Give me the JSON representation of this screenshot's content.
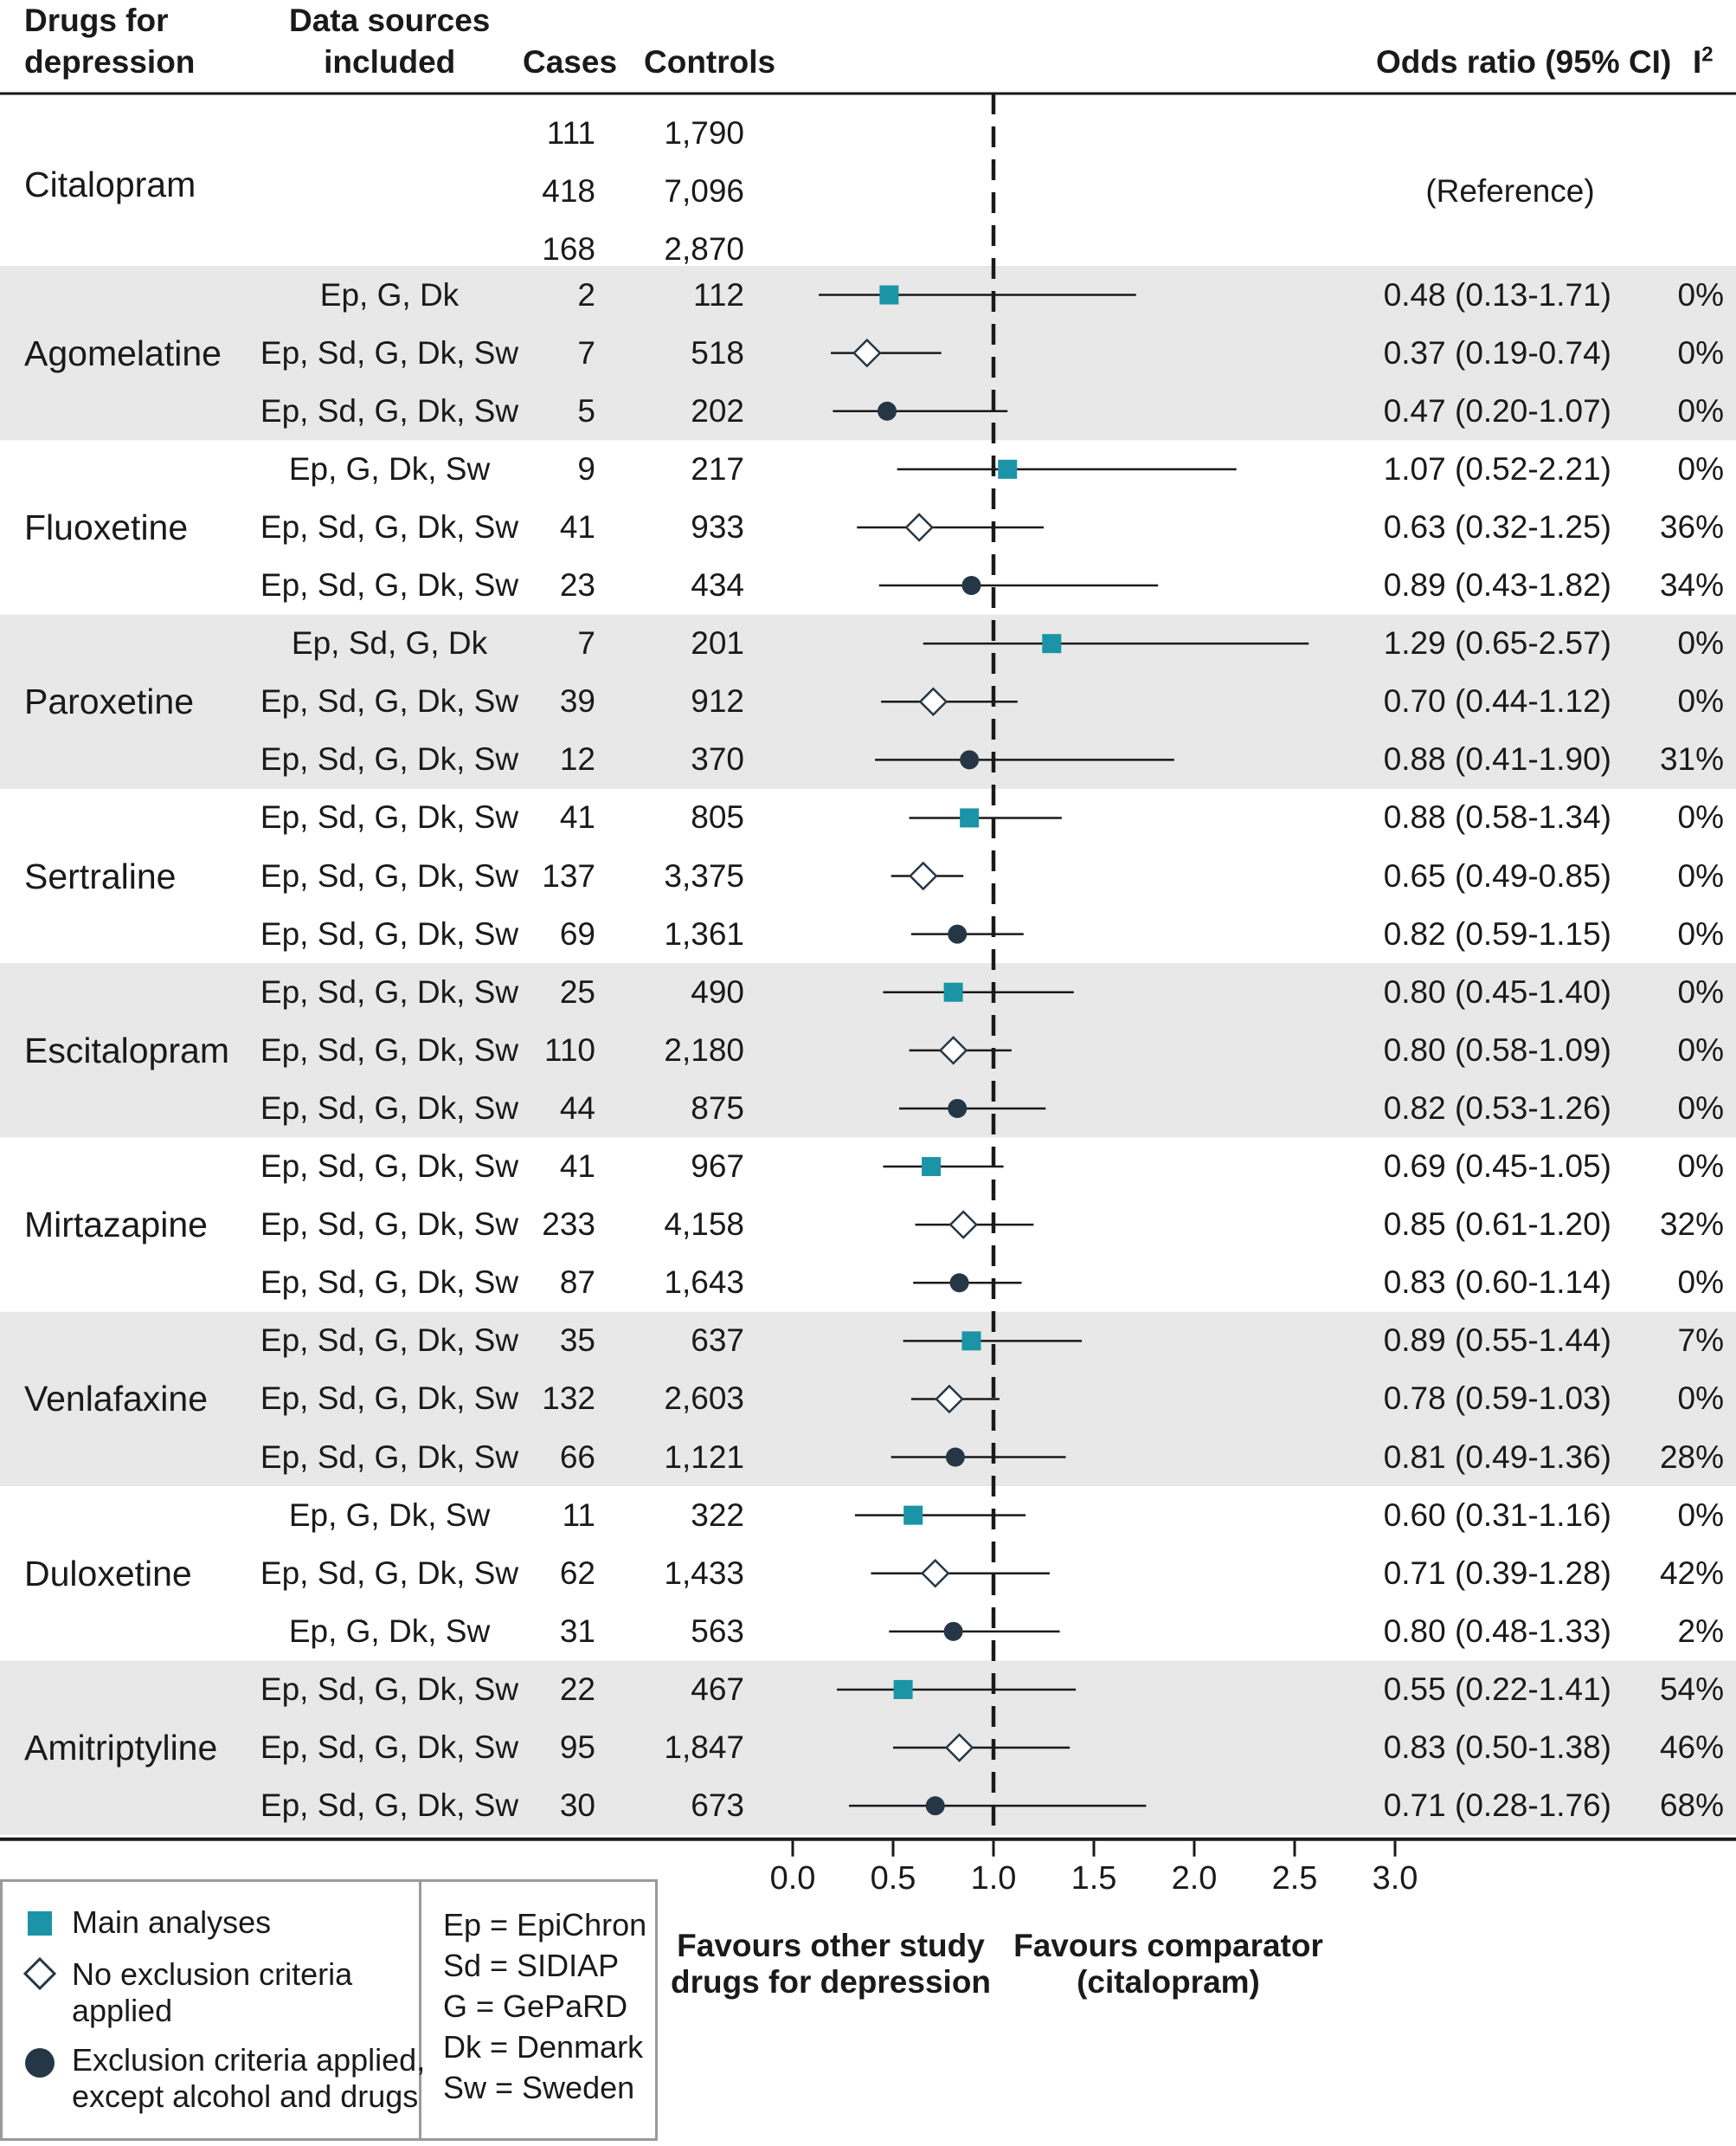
{
  "headers": {
    "drugs": "Drugs for\ndepression",
    "sources": "Data sources\nincluded",
    "cases": "Cases",
    "controls": "Controls",
    "or": "Odds ratio (95% CI)",
    "i2": "I",
    "i2_sup": "2"
  },
  "reference": {
    "name": "Citalopram",
    "label": "(Reference)",
    "rows": [
      {
        "cases": "111",
        "controls": "1,790"
      },
      {
        "cases": "418",
        "controls": "7,096"
      },
      {
        "cases": "168",
        "controls": "2,870"
      }
    ]
  },
  "legend": {
    "main": "Main analyses",
    "noexcl": "No exclusion criteria\napplied",
    "excl": "Exclusion criteria applied,\nexcept alcohol and drugs",
    "abbreviations": [
      "Ep = EpiChron",
      "Sd = SIDIAP",
      "G = GePaRD",
      "Dk = Denmark",
      "Sw = Sweden"
    ]
  },
  "axis": {
    "ticks": [
      "0.0",
      "0.5",
      "1.0",
      "1.5",
      "2.0",
      "2.5",
      "3.0"
    ],
    "left_label": "Favours other study\ndrugs for depression",
    "right_label": "Favours comparator\n(citalopram)"
  },
  "colors": {
    "main": "#1a94a6",
    "excl": "#253746",
    "shade": "#e8e8e8",
    "line": "#1a1a1a"
  },
  "chart_data": {
    "type": "forest",
    "title": "",
    "xlabel": "Odds ratio (95% CI)",
    "xlim": [
      0,
      3
    ],
    "reference_value": 1.0,
    "series_names": [
      "Main analyses",
      "No exclusion criteria applied",
      "Exclusion criteria applied, except alcohol and drugs"
    ],
    "groups": [
      {
        "drug": "Agomelatine",
        "rows": [
          {
            "sources": "Ep, G, Dk",
            "cases": "2",
            "controls": "112",
            "or": 0.48,
            "lo": 0.13,
            "hi": 1.71,
            "ci_text": "0.48 (0.13-1.71)",
            "i2": "0%"
          },
          {
            "sources": "Ep, Sd, G, Dk, Sw",
            "cases": "7",
            "controls": "518",
            "or": 0.37,
            "lo": 0.19,
            "hi": 0.74,
            "ci_text": "0.37 (0.19-0.74)",
            "i2": "0%"
          },
          {
            "sources": "Ep, Sd, G, Dk, Sw",
            "cases": "5",
            "controls": "202",
            "or": 0.47,
            "lo": 0.2,
            "hi": 1.07,
            "ci_text": "0.47 (0.20-1.07)",
            "i2": "0%"
          }
        ]
      },
      {
        "drug": "Fluoxetine",
        "rows": [
          {
            "sources": "Ep, G, Dk, Sw",
            "cases": "9",
            "controls": "217",
            "or": 1.07,
            "lo": 0.52,
            "hi": 2.21,
            "ci_text": "1.07 (0.52-2.21)",
            "i2": "0%"
          },
          {
            "sources": "Ep, Sd, G, Dk, Sw",
            "cases": "41",
            "controls": "933",
            "or": 0.63,
            "lo": 0.32,
            "hi": 1.25,
            "ci_text": "0.63 (0.32-1.25)",
            "i2": "36%"
          },
          {
            "sources": "Ep, Sd, G, Dk, Sw",
            "cases": "23",
            "controls": "434",
            "or": 0.89,
            "lo": 0.43,
            "hi": 1.82,
            "ci_text": "0.89 (0.43-1.82)",
            "i2": "34%"
          }
        ]
      },
      {
        "drug": "Paroxetine",
        "rows": [
          {
            "sources": "Ep, Sd, G, Dk",
            "cases": "7",
            "controls": "201",
            "or": 1.29,
            "lo": 0.65,
            "hi": 2.57,
            "ci_text": "1.29 (0.65-2.57)",
            "i2": "0%"
          },
          {
            "sources": "Ep, Sd, G, Dk, Sw",
            "cases": "39",
            "controls": "912",
            "or": 0.7,
            "lo": 0.44,
            "hi": 1.12,
            "ci_text": "0.70 (0.44-1.12)",
            "i2": "0%"
          },
          {
            "sources": "Ep, Sd, G, Dk, Sw",
            "cases": "12",
            "controls": "370",
            "or": 0.88,
            "lo": 0.41,
            "hi": 1.9,
            "ci_text": "0.88 (0.41-1.90)",
            "i2": "31%"
          }
        ]
      },
      {
        "drug": "Sertraline",
        "rows": [
          {
            "sources": "Ep, Sd, G, Dk, Sw",
            "cases": "41",
            "controls": "805",
            "or": 0.88,
            "lo": 0.58,
            "hi": 1.34,
            "ci_text": "0.88 (0.58-1.34)",
            "i2": "0%"
          },
          {
            "sources": "Ep, Sd, G, Dk, Sw",
            "cases": "137",
            "controls": "3,375",
            "or": 0.65,
            "lo": 0.49,
            "hi": 0.85,
            "ci_text": "0.65 (0.49-0.85)",
            "i2": "0%"
          },
          {
            "sources": "Ep, Sd, G, Dk, Sw",
            "cases": "69",
            "controls": "1,361",
            "or": 0.82,
            "lo": 0.59,
            "hi": 1.15,
            "ci_text": "0.82 (0.59-1.15)",
            "i2": "0%"
          }
        ]
      },
      {
        "drug": "Escitalopram",
        "rows": [
          {
            "sources": "Ep, Sd, G, Dk, Sw",
            "cases": "25",
            "controls": "490",
            "or": 0.8,
            "lo": 0.45,
            "hi": 1.4,
            "ci_text": "0.80 (0.45-1.40)",
            "i2": "0%"
          },
          {
            "sources": "Ep, Sd, G, Dk, Sw",
            "cases": "110",
            "controls": "2,180",
            "or": 0.8,
            "lo": 0.58,
            "hi": 1.09,
            "ci_text": "0.80 (0.58-1.09)",
            "i2": "0%"
          },
          {
            "sources": "Ep, Sd, G, Dk, Sw",
            "cases": "44",
            "controls": "875",
            "or": 0.82,
            "lo": 0.53,
            "hi": 1.26,
            "ci_text": "0.82 (0.53-1.26)",
            "i2": "0%"
          }
        ]
      },
      {
        "drug": "Mirtazapine",
        "rows": [
          {
            "sources": "Ep, Sd, G, Dk, Sw",
            "cases": "41",
            "controls": "967",
            "or": 0.69,
            "lo": 0.45,
            "hi": 1.05,
            "ci_text": "0.69 (0.45-1.05)",
            "i2": "0%"
          },
          {
            "sources": "Ep, Sd, G, Dk, Sw",
            "cases": "233",
            "controls": "4,158",
            "or": 0.85,
            "lo": 0.61,
            "hi": 1.2,
            "ci_text": "0.85 (0.61-1.20)",
            "i2": "32%"
          },
          {
            "sources": "Ep, Sd, G, Dk, Sw",
            "cases": "87",
            "controls": "1,643",
            "or": 0.83,
            "lo": 0.6,
            "hi": 1.14,
            "ci_text": "0.83 (0.60-1.14)",
            "i2": "0%"
          }
        ]
      },
      {
        "drug": "Venlafaxine",
        "rows": [
          {
            "sources": "Ep, Sd, G, Dk, Sw",
            "cases": "35",
            "controls": "637",
            "or": 0.89,
            "lo": 0.55,
            "hi": 1.44,
            "ci_text": "0.89 (0.55-1.44)",
            "i2": "7%"
          },
          {
            "sources": "Ep, Sd, G, Dk, Sw",
            "cases": "132",
            "controls": "2,603",
            "or": 0.78,
            "lo": 0.59,
            "hi": 1.03,
            "ci_text": "0.78 (0.59-1.03)",
            "i2": "0%"
          },
          {
            "sources": "Ep, Sd, G, Dk, Sw",
            "cases": "66",
            "controls": "1,121",
            "or": 0.81,
            "lo": 0.49,
            "hi": 1.36,
            "ci_text": "0.81 (0.49-1.36)",
            "i2": "28%"
          }
        ]
      },
      {
        "drug": "Duloxetine",
        "rows": [
          {
            "sources": "Ep, G, Dk, Sw",
            "cases": "11",
            "controls": "322",
            "or": 0.6,
            "lo": 0.31,
            "hi": 1.16,
            "ci_text": "0.60 (0.31-1.16)",
            "i2": "0%"
          },
          {
            "sources": "Ep, Sd, G, Dk, Sw",
            "cases": "62",
            "controls": "1,433",
            "or": 0.71,
            "lo": 0.39,
            "hi": 1.28,
            "ci_text": "0.71 (0.39-1.28)",
            "i2": "42%"
          },
          {
            "sources": "Ep, G, Dk, Sw",
            "cases": "31",
            "controls": "563",
            "or": 0.8,
            "lo": 0.48,
            "hi": 1.33,
            "ci_text": "0.80 (0.48-1.33)",
            "i2": "2%"
          }
        ]
      },
      {
        "drug": "Amitriptyline",
        "rows": [
          {
            "sources": "Ep, Sd, G, Dk, Sw",
            "cases": "22",
            "controls": "467",
            "or": 0.55,
            "lo": 0.22,
            "hi": 1.41,
            "ci_text": "0.55 (0.22-1.41)",
            "i2": "54%"
          },
          {
            "sources": "Ep, Sd, G, Dk, Sw",
            "cases": "95",
            "controls": "1,847",
            "or": 0.83,
            "lo": 0.5,
            "hi": 1.38,
            "ci_text": "0.83 (0.50-1.38)",
            "i2": "46%"
          },
          {
            "sources": "Ep, Sd, G, Dk, Sw",
            "cases": "30",
            "controls": "673",
            "or": 0.71,
            "lo": 0.28,
            "hi": 1.76,
            "ci_text": "0.71 (0.28-1.76)",
            "i2": "68%"
          }
        ]
      }
    ]
  }
}
